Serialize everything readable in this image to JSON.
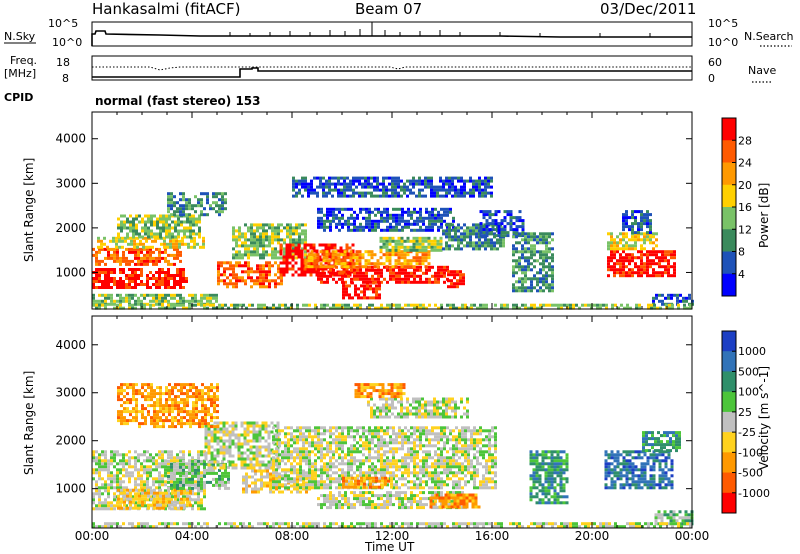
{
  "header": {
    "station": "Hankasalmi (fitACF)",
    "beam": "Beam 07",
    "date": "03/Dec/2011"
  },
  "summary_panel": {
    "left_label": "N.Sky",
    "right_label": "N.Search",
    "left_ticks": [
      "10^5",
      "10^0"
    ],
    "right_ticks": [
      "10^5",
      "10^0"
    ]
  },
  "freq_panel": {
    "left_label_line1": "Freq.",
    "left_label_line2": "[MHz]",
    "right_label": "Nave",
    "left_ticks": [
      "18",
      "8"
    ],
    "right_ticks": [
      "60",
      "0"
    ],
    "cpid_label": "CPID",
    "cpid_text": "normal (fast stereo) 153"
  },
  "chart_data": [
    {
      "type": "heatmap",
      "title": "",
      "xlabel": "Time UT",
      "ylabel": "Slant Range [km]",
      "xlim": [
        0,
        24
      ],
      "ylim": [
        180,
        4600
      ],
      "x_tick_labels": [
        "00:00",
        "04:00",
        "08:00",
        "12:00",
        "16:00",
        "20:00",
        "00:00"
      ],
      "y_ticks": [
        1000,
        2000,
        3000,
        4000
      ],
      "colorbar": {
        "label": "Power [dB]",
        "tick_labels": [
          "28",
          "24",
          "20",
          "16",
          "12",
          "8",
          "4"
        ],
        "colors": [
          "#ff0000",
          "#ff5a00",
          "#ff9900",
          "#ffd000",
          "#79c267",
          "#3a8a5c",
          "#1e52b8",
          "#0000ff"
        ]
      },
      "regions": [
        {
          "t0": 0.0,
          "t1": 3.8,
          "r0": 650,
          "r1": 1100,
          "level": 0
        },
        {
          "t0": 0.0,
          "t1": 3.5,
          "r0": 1150,
          "r1": 1550,
          "level": 1
        },
        {
          "t0": 0.2,
          "t1": 4.5,
          "r0": 1550,
          "r1": 1800,
          "level": 3
        },
        {
          "t0": 1.0,
          "t1": 4.3,
          "r0": 1800,
          "r1": 2300,
          "level": 4
        },
        {
          "t0": 3.0,
          "t1": 5.3,
          "r0": 2300,
          "r1": 2800,
          "level": 5
        },
        {
          "t0": 0.0,
          "t1": 5.0,
          "r0": 300,
          "r1": 520,
          "level": 4
        },
        {
          "t0": 5.0,
          "t1": 7.6,
          "r0": 650,
          "r1": 1250,
          "level": 1
        },
        {
          "t0": 5.6,
          "t1": 8.5,
          "r0": 1350,
          "r1": 2100,
          "level": 4
        },
        {
          "t0": 7.5,
          "t1": 10.5,
          "r0": 950,
          "r1": 1650,
          "level": 0
        },
        {
          "t0": 9.0,
          "t1": 14.2,
          "r0": 800,
          "r1": 1150,
          "level": 0
        },
        {
          "t0": 8.5,
          "t1": 13.5,
          "r0": 1150,
          "r1": 1500,
          "level": 2
        },
        {
          "t0": 10.0,
          "t1": 11.5,
          "r0": 450,
          "r1": 800,
          "level": 0
        },
        {
          "t0": 11.5,
          "t1": 14.0,
          "r0": 1500,
          "r1": 1800,
          "level": 4
        },
        {
          "t0": 9.0,
          "t1": 14.5,
          "r0": 1950,
          "r1": 2450,
          "level": 6
        },
        {
          "t0": 14.2,
          "t1": 14.9,
          "r0": 700,
          "r1": 1050,
          "level": 0
        },
        {
          "t0": 14.0,
          "t1": 16.5,
          "r0": 1500,
          "r1": 2100,
          "level": 5
        },
        {
          "t0": 15.5,
          "t1": 17.2,
          "r0": 1800,
          "r1": 2400,
          "level": 6
        },
        {
          "t0": 16.8,
          "t1": 18.4,
          "r0": 600,
          "r1": 1900,
          "level": 5
        },
        {
          "t0": 20.6,
          "t1": 23.3,
          "r0": 900,
          "r1": 1500,
          "level": 0
        },
        {
          "t0": 20.6,
          "t1": 22.6,
          "r0": 1500,
          "r1": 1900,
          "level": 3
        },
        {
          "t0": 21.2,
          "t1": 22.4,
          "r0": 1900,
          "r1": 2400,
          "level": 6
        },
        {
          "t0": 22.4,
          "t1": 24.0,
          "r0": 280,
          "r1": 520,
          "level": 6
        },
        {
          "t0": 8.0,
          "t1": 16.0,
          "r0": 2700,
          "r1": 3150,
          "level": 6
        },
        {
          "t0": 0.0,
          "t1": 24.0,
          "r0": 190,
          "r1": 300,
          "level": 4
        }
      ]
    },
    {
      "type": "heatmap",
      "title": "",
      "xlabel": "Time UT",
      "ylabel": "Slant Range [km]",
      "xlim": [
        0,
        24
      ],
      "ylim": [
        180,
        4600
      ],
      "x_tick_labels": [
        "00:00",
        "04:00",
        "08:00",
        "12:00",
        "16:00",
        "20:00",
        "00:00"
      ],
      "y_ticks": [
        1000,
        2000,
        3000,
        4000
      ],
      "colorbar": {
        "label": "Velocity [m s^-1]",
        "tick_labels": [
          "1000",
          "500",
          "100",
          "25",
          "-25",
          "-100",
          "-500",
          "-1000"
        ],
        "colors": [
          "#1c3fc4",
          "#3173b8",
          "#2f8f6a",
          "#4cc53a",
          "#c0c0c0",
          "#ffd21e",
          "#ff9900",
          "#ff5a00",
          "#ff0000"
        ]
      },
      "regions": [
        {
          "t0": 0.0,
          "t1": 4.5,
          "r0": 600,
          "r1": 1800,
          "level": 4
        },
        {
          "t0": 1.0,
          "t1": 4.0,
          "r0": 600,
          "r1": 1000,
          "level": 5
        },
        {
          "t0": 3.0,
          "t1": 5.5,
          "r0": 1000,
          "r1": 1600,
          "level": 3
        },
        {
          "t0": 4.5,
          "t1": 7.5,
          "r0": 1400,
          "r1": 2400,
          "level": 4
        },
        {
          "t0": 6.0,
          "t1": 9.0,
          "r0": 900,
          "r1": 1400,
          "level": 5
        },
        {
          "t0": 7.2,
          "t1": 16.2,
          "r0": 1000,
          "r1": 2300,
          "level": 4
        },
        {
          "t0": 9.0,
          "t1": 15.0,
          "r0": 600,
          "r1": 950,
          "level": 4
        },
        {
          "t0": 10.0,
          "t1": 12.0,
          "r0": 1050,
          "r1": 1250,
          "level": 6
        },
        {
          "t0": 13.5,
          "t1": 15.5,
          "r0": 600,
          "r1": 900,
          "level": 6
        },
        {
          "t0": 11.0,
          "t1": 15.0,
          "r0": 2500,
          "r1": 2900,
          "level": 4
        },
        {
          "t0": 10.5,
          "t1": 12.5,
          "r0": 2900,
          "r1": 3200,
          "level": 6
        },
        {
          "t0": 17.5,
          "t1": 19.0,
          "r0": 700,
          "r1": 1800,
          "level": 2
        },
        {
          "t0": 20.5,
          "t1": 23.2,
          "r0": 1000,
          "r1": 1800,
          "level": 1
        },
        {
          "t0": 22.0,
          "t1": 23.5,
          "r0": 1800,
          "r1": 2200,
          "level": 2
        },
        {
          "t0": 22.5,
          "t1": 24.0,
          "r0": 250,
          "r1": 550,
          "level": 3
        },
        {
          "t0": 1.0,
          "t1": 5.0,
          "r0": 2300,
          "r1": 3200,
          "level": 6
        },
        {
          "t0": 0.0,
          "t1": 24.0,
          "r0": 190,
          "r1": 300,
          "level": 4
        }
      ]
    }
  ]
}
